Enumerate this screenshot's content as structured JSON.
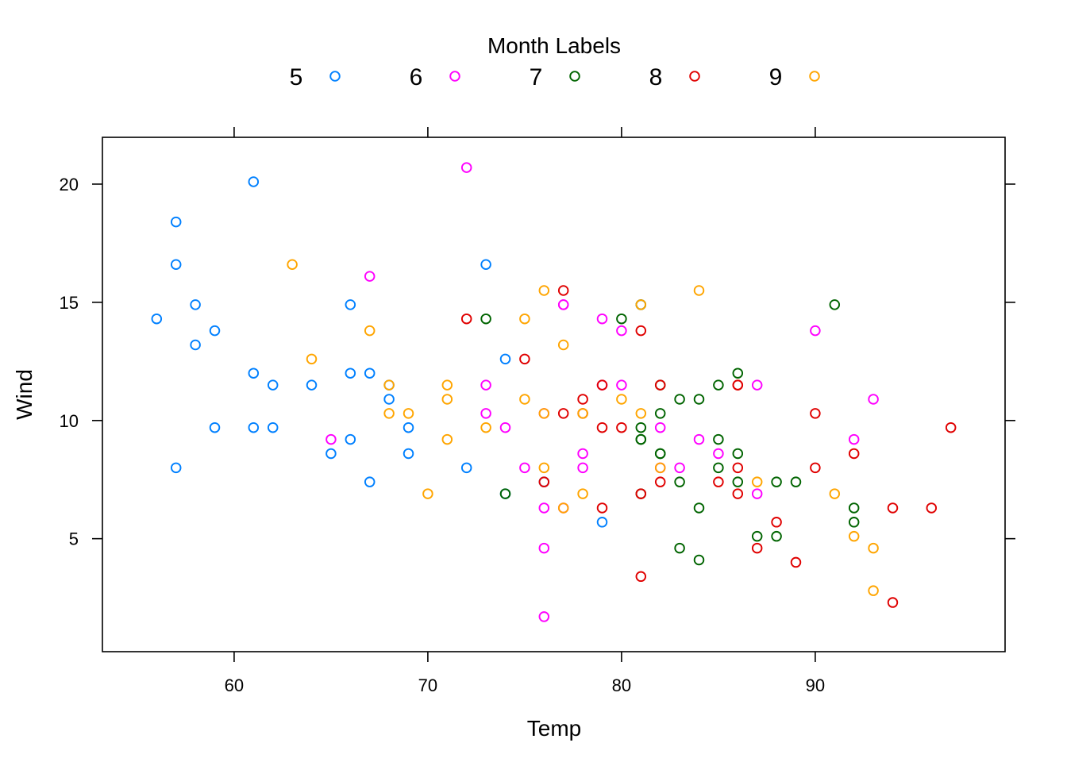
{
  "chart_data": {
    "type": "scatter",
    "title": "",
    "xlabel": "Temp",
    "ylabel": "Wind",
    "xlim": [
      53.2,
      99.8
    ],
    "ylim": [
      0.22,
      21.98
    ],
    "xticks": [
      60,
      70,
      80,
      90
    ],
    "yticks": [
      5,
      10,
      15,
      20
    ],
    "grid": false,
    "legend": {
      "title": "Month Labels",
      "placement": "top",
      "marker": "open-circle"
    },
    "series": [
      {
        "name": "5",
        "color": "#0080ff",
        "points": [
          [
            67,
            7.4
          ],
          [
            72,
            8.0
          ],
          [
            74,
            12.6
          ],
          [
            62,
            11.5
          ],
          [
            56,
            14.3
          ],
          [
            66,
            14.9
          ],
          [
            65,
            8.6
          ],
          [
            59,
            13.8
          ],
          [
            61,
            20.1
          ],
          [
            69,
            8.6
          ],
          [
            74,
            6.9
          ],
          [
            69,
            9.7
          ],
          [
            66,
            9.2
          ],
          [
            68,
            10.9
          ],
          [
            58,
            13.2
          ],
          [
            64,
            11.5
          ],
          [
            66,
            12.0
          ],
          [
            57,
            18.4
          ],
          [
            68,
            11.5
          ],
          [
            62,
            9.7
          ],
          [
            59,
            9.7
          ],
          [
            73,
            16.6
          ],
          [
            61,
            9.7
          ],
          [
            61,
            12.0
          ],
          [
            57,
            16.6
          ],
          [
            58,
            14.9
          ],
          [
            57,
            8.0
          ],
          [
            67,
            12.0
          ],
          [
            81,
            14.9
          ],
          [
            79,
            5.7
          ],
          [
            76,
            7.4
          ]
        ]
      },
      {
        "name": "6",
        "color": "#ff00ff",
        "points": [
          [
            78,
            8.6
          ],
          [
            74,
            9.7
          ],
          [
            67,
            16.1
          ],
          [
            84,
            9.2
          ],
          [
            85,
            8.6
          ],
          [
            79,
            14.3
          ],
          [
            82,
            9.7
          ],
          [
            87,
            6.9
          ],
          [
            90,
            13.8
          ],
          [
            87,
            11.5
          ],
          [
            93,
            10.9
          ],
          [
            92,
            9.2
          ],
          [
            82,
            8.0
          ],
          [
            80,
            13.8
          ],
          [
            79,
            11.5
          ],
          [
            77,
            14.9
          ],
          [
            72,
            20.7
          ],
          [
            65,
            9.2
          ],
          [
            73,
            11.5
          ],
          [
            76,
            10.3
          ],
          [
            77,
            6.3
          ],
          [
            76,
            1.7
          ],
          [
            76,
            4.6
          ],
          [
            76,
            6.3
          ],
          [
            75,
            8.0
          ],
          [
            78,
            8.0
          ],
          [
            73,
            10.3
          ],
          [
            80,
            11.5
          ],
          [
            77,
            14.9
          ],
          [
            83,
            8.0
          ]
        ]
      },
      {
        "name": "7",
        "color": "#006400",
        "points": [
          [
            84,
            4.1
          ],
          [
            85,
            9.2
          ],
          [
            81,
            9.2
          ],
          [
            84,
            10.9
          ],
          [
            83,
            4.6
          ],
          [
            83,
            10.9
          ],
          [
            88,
            5.1
          ],
          [
            92,
            6.3
          ],
          [
            92,
            5.7
          ],
          [
            89,
            7.4
          ],
          [
            82,
            8.6
          ],
          [
            73,
            14.3
          ],
          [
            81,
            14.9
          ],
          [
            91,
            14.9
          ],
          [
            80,
            14.3
          ],
          [
            81,
            6.9
          ],
          [
            82,
            10.3
          ],
          [
            84,
            6.3
          ],
          [
            87,
            5.1
          ],
          [
            85,
            11.5
          ],
          [
            74,
            6.9
          ],
          [
            81,
            9.7
          ],
          [
            82,
            11.5
          ],
          [
            86,
            8.6
          ],
          [
            85,
            8.0
          ],
          [
            82,
            8.6
          ],
          [
            86,
            12.0
          ],
          [
            88,
            7.4
          ],
          [
            86,
            7.4
          ],
          [
            83,
            7.4
          ],
          [
            81,
            9.2
          ]
        ]
      },
      {
        "name": "8",
        "color": "#e00000",
        "points": [
          [
            81,
            6.9
          ],
          [
            81,
            13.8
          ],
          [
            82,
            7.4
          ],
          [
            86,
            6.9
          ],
          [
            85,
            7.4
          ],
          [
            87,
            4.6
          ],
          [
            89,
            4.0
          ],
          [
            90,
            10.3
          ],
          [
            90,
            8.0
          ],
          [
            92,
            8.6
          ],
          [
            86,
            11.5
          ],
          [
            86,
            11.5
          ],
          [
            82,
            11.5
          ],
          [
            80,
            9.7
          ],
          [
            79,
            11.5
          ],
          [
            77,
            10.3
          ],
          [
            79,
            6.3
          ],
          [
            76,
            7.4
          ],
          [
            78,
            10.9
          ],
          [
            78,
            10.3
          ],
          [
            77,
            15.5
          ],
          [
            72,
            14.3
          ],
          [
            75,
            12.6
          ],
          [
            79,
            9.7
          ],
          [
            81,
            3.4
          ],
          [
            86,
            8.0
          ],
          [
            88,
            5.7
          ],
          [
            97,
            9.7
          ],
          [
            94,
            2.3
          ],
          [
            96,
            6.3
          ],
          [
            94,
            6.3
          ]
        ]
      },
      {
        "name": "9",
        "color": "#ffa500",
        "points": [
          [
            91,
            6.9
          ],
          [
            92,
            5.1
          ],
          [
            93,
            2.8
          ],
          [
            93,
            4.6
          ],
          [
            87,
            7.4
          ],
          [
            84,
            15.5
          ],
          [
            80,
            10.9
          ],
          [
            78,
            10.3
          ],
          [
            75,
            10.9
          ],
          [
            73,
            9.7
          ],
          [
            81,
            14.9
          ],
          [
            76,
            15.5
          ],
          [
            77,
            6.3
          ],
          [
            71,
            10.9
          ],
          [
            71,
            11.5
          ],
          [
            78,
            6.9
          ],
          [
            67,
            13.8
          ],
          [
            76,
            10.3
          ],
          [
            68,
            10.3
          ],
          [
            82,
            8.0
          ],
          [
            64,
            12.6
          ],
          [
            71,
            9.2
          ],
          [
            81,
            10.3
          ],
          [
            69,
            10.3
          ],
          [
            63,
            16.6
          ],
          [
            70,
            6.9
          ],
          [
            77,
            13.2
          ],
          [
            75,
            14.3
          ],
          [
            76,
            8.0
          ],
          [
            68,
            11.5
          ]
        ]
      }
    ]
  }
}
